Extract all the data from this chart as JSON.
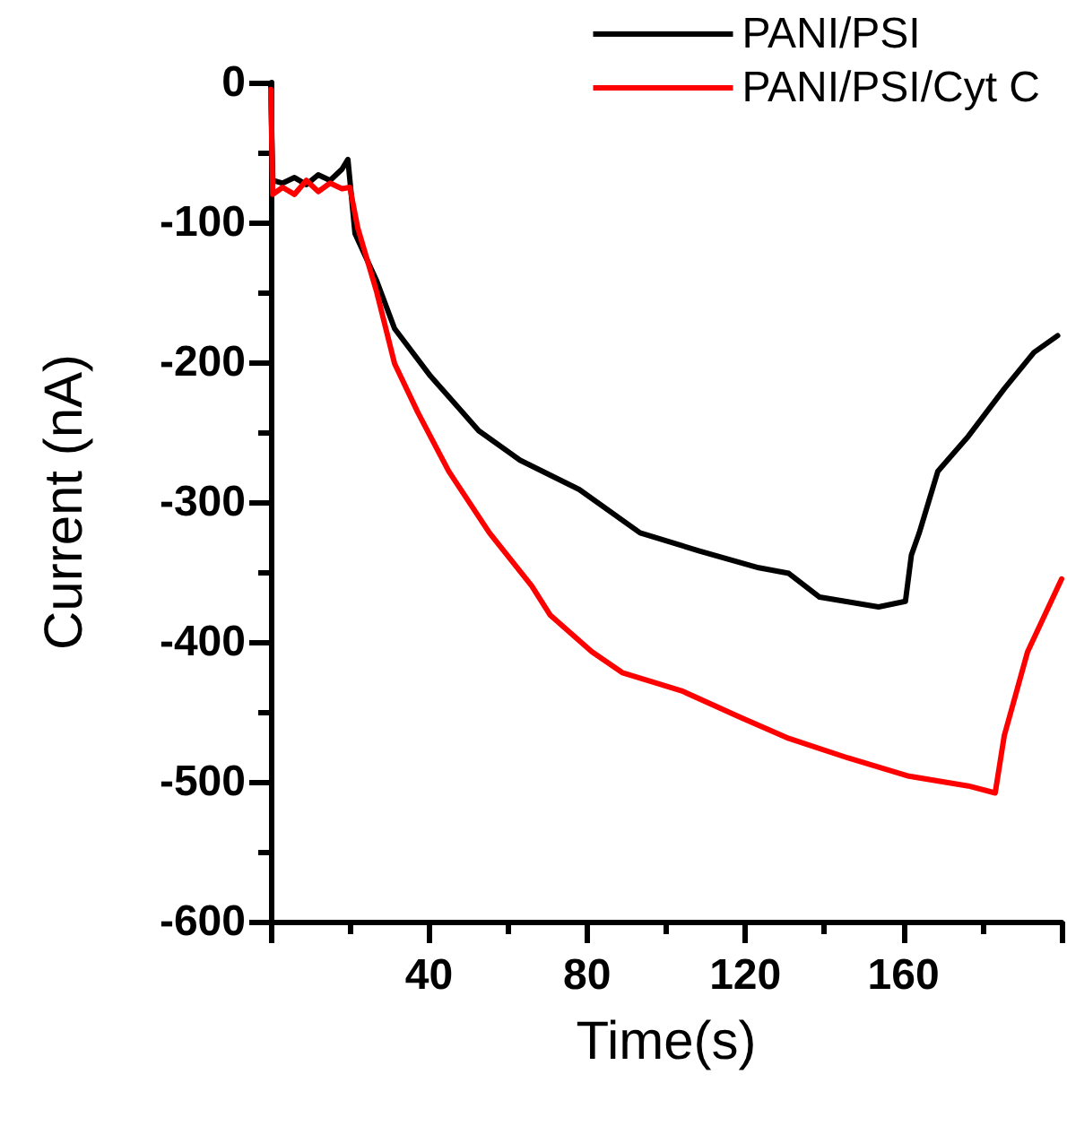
{
  "chart_data": {
    "type": "line",
    "xlabel": "Time(s)",
    "ylabel": "Current (nA)",
    "xlim": [
      0,
      200
    ],
    "xticks": [
      {
        "value": 0,
        "label": null
      },
      40,
      80,
      120,
      160,
      {
        "value": 200,
        "label": null
      }
    ],
    "ylim": [
      -600,
      0
    ],
    "yticks": [
      -600,
      -500,
      -400,
      -300,
      -200,
      -100,
      0
    ],
    "legend": "top right",
    "marker": "none",
    "line_style": "solid",
    "grid": false,
    "series": [
      {
        "name": "PANI/PSI",
        "color": "#000000",
        "x": [
          0,
          0.5,
          3,
          6,
          9,
          12,
          15,
          18,
          19.5,
          21.3,
          26.8,
          31.3,
          40.4,
          52.6,
          63,
          78,
          93.4,
          108.4,
          123.4,
          131,
          138.8,
          153.7,
          160.5,
          162,
          164,
          168.7,
          176.4,
          185.5,
          193,
          199
        ],
        "values": [
          -2,
          -70,
          -72,
          -68,
          -73,
          -66,
          -70,
          -62,
          -55,
          -108,
          -142,
          -176,
          -210,
          -249,
          -270,
          -291,
          -322,
          -335,
          -347,
          -351,
          -368,
          -375,
          -371,
          -338,
          -322,
          -278,
          -253,
          -219,
          -193,
          -181
        ]
      },
      {
        "name": "PANI/PSI/Cyt C",
        "color": "#ff0000",
        "x": [
          0,
          0.5,
          3,
          6,
          9,
          12,
          15,
          18,
          20,
          22,
          26.8,
          31.3,
          37.2,
          45,
          55.3,
          66,
          70.7,
          81.2,
          88.9,
          103.9,
          118.8,
          131,
          146,
          161.4,
          176.4,
          183.2,
          185.5,
          191.4,
          200
        ],
        "values": [
          -5,
          -80,
          -75,
          -80,
          -70,
          -78,
          -72,
          -76,
          -75,
          -104,
          -150,
          -201,
          -236,
          -278,
          -322,
          -360,
          -381,
          -407,
          -422,
          -435,
          -454,
          -469,
          -483,
          -496,
          -503,
          -508,
          -467,
          -407,
          -355
        ]
      }
    ]
  }
}
